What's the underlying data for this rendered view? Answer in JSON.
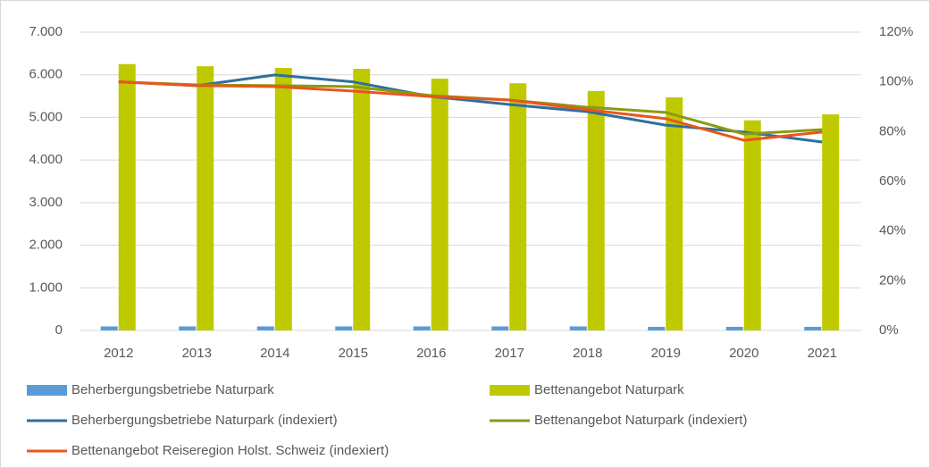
{
  "chart_data": {
    "type": "bar-line",
    "categories": [
      "2012",
      "2013",
      "2014",
      "2015",
      "2016",
      "2017",
      "2018",
      "2019",
      "2020",
      "2021"
    ],
    "series": [
      {
        "name": "Beherbergungsbetriebe Naturpark",
        "type": "bar",
        "color": "#5b9bd5",
        "values": [
          95,
          95,
          95,
          95,
          95,
          95,
          95,
          85,
          85,
          85
        ]
      },
      {
        "name": "Bettenangebot Naturpark",
        "type": "bar",
        "color": "#bfc900",
        "values": [
          6250,
          6200,
          6160,
          6140,
          5910,
          5800,
          5620,
          5470,
          4930,
          5070
        ]
      },
      {
        "name": "Beherbergungsbetriebe Naturpark (indexiert)",
        "type": "line",
        "axis": "y2",
        "color": "#2e6f9e",
        "values": [
          100,
          98.5,
          102.8,
          100,
          94.1,
          90.9,
          88,
          82.6,
          79.8,
          75.8
        ]
      },
      {
        "name": "Bettenangebot Naturpark (indexiert)",
        "type": "line",
        "axis": "y2",
        "color": "#8a9a12",
        "values": [
          100,
          98.8,
          98.5,
          98.1,
          94.5,
          92.7,
          89.8,
          87.7,
          79,
          80.8
        ]
      },
      {
        "name": "Bettenangebot Reiseregion Holst. Schweiz (indexiert)",
        "type": "line",
        "axis": "y2",
        "color": "#e8561e",
        "values": [
          100,
          98.5,
          98.1,
          96.3,
          94.1,
          92.7,
          88.8,
          85.2,
          76.5,
          79.8
        ]
      }
    ],
    "ylim": [
      0,
      7000
    ],
    "yticks": [
      0,
      {
        "value": 1000,
        "label": "1.000"
      },
      {
        "value": 2000,
        "label": "2.000"
      },
      {
        "value": 3000,
        "label": "3.000"
      },
      {
        "value": 4000,
        "label": "4.000"
      },
      {
        "value": 5000,
        "label": "5.000"
      },
      {
        "value": 6000,
        "label": "6.000"
      },
      {
        "value": 7000,
        "label": "7.000"
      }
    ],
    "y2lim": [
      0,
      120
    ],
    "y2ticks": [
      {
        "value": 0,
        "label": "0%"
      },
      {
        "value": 20,
        "label": "20%"
      },
      {
        "value": 40,
        "label": "40%"
      },
      {
        "value": 60,
        "label": "60%"
      },
      {
        "value": 80,
        "label": "80%"
      },
      {
        "value": 100,
        "label": "100%"
      },
      {
        "value": 120,
        "label": "120%"
      }
    ],
    "grid": true,
    "legend": "bottom"
  }
}
